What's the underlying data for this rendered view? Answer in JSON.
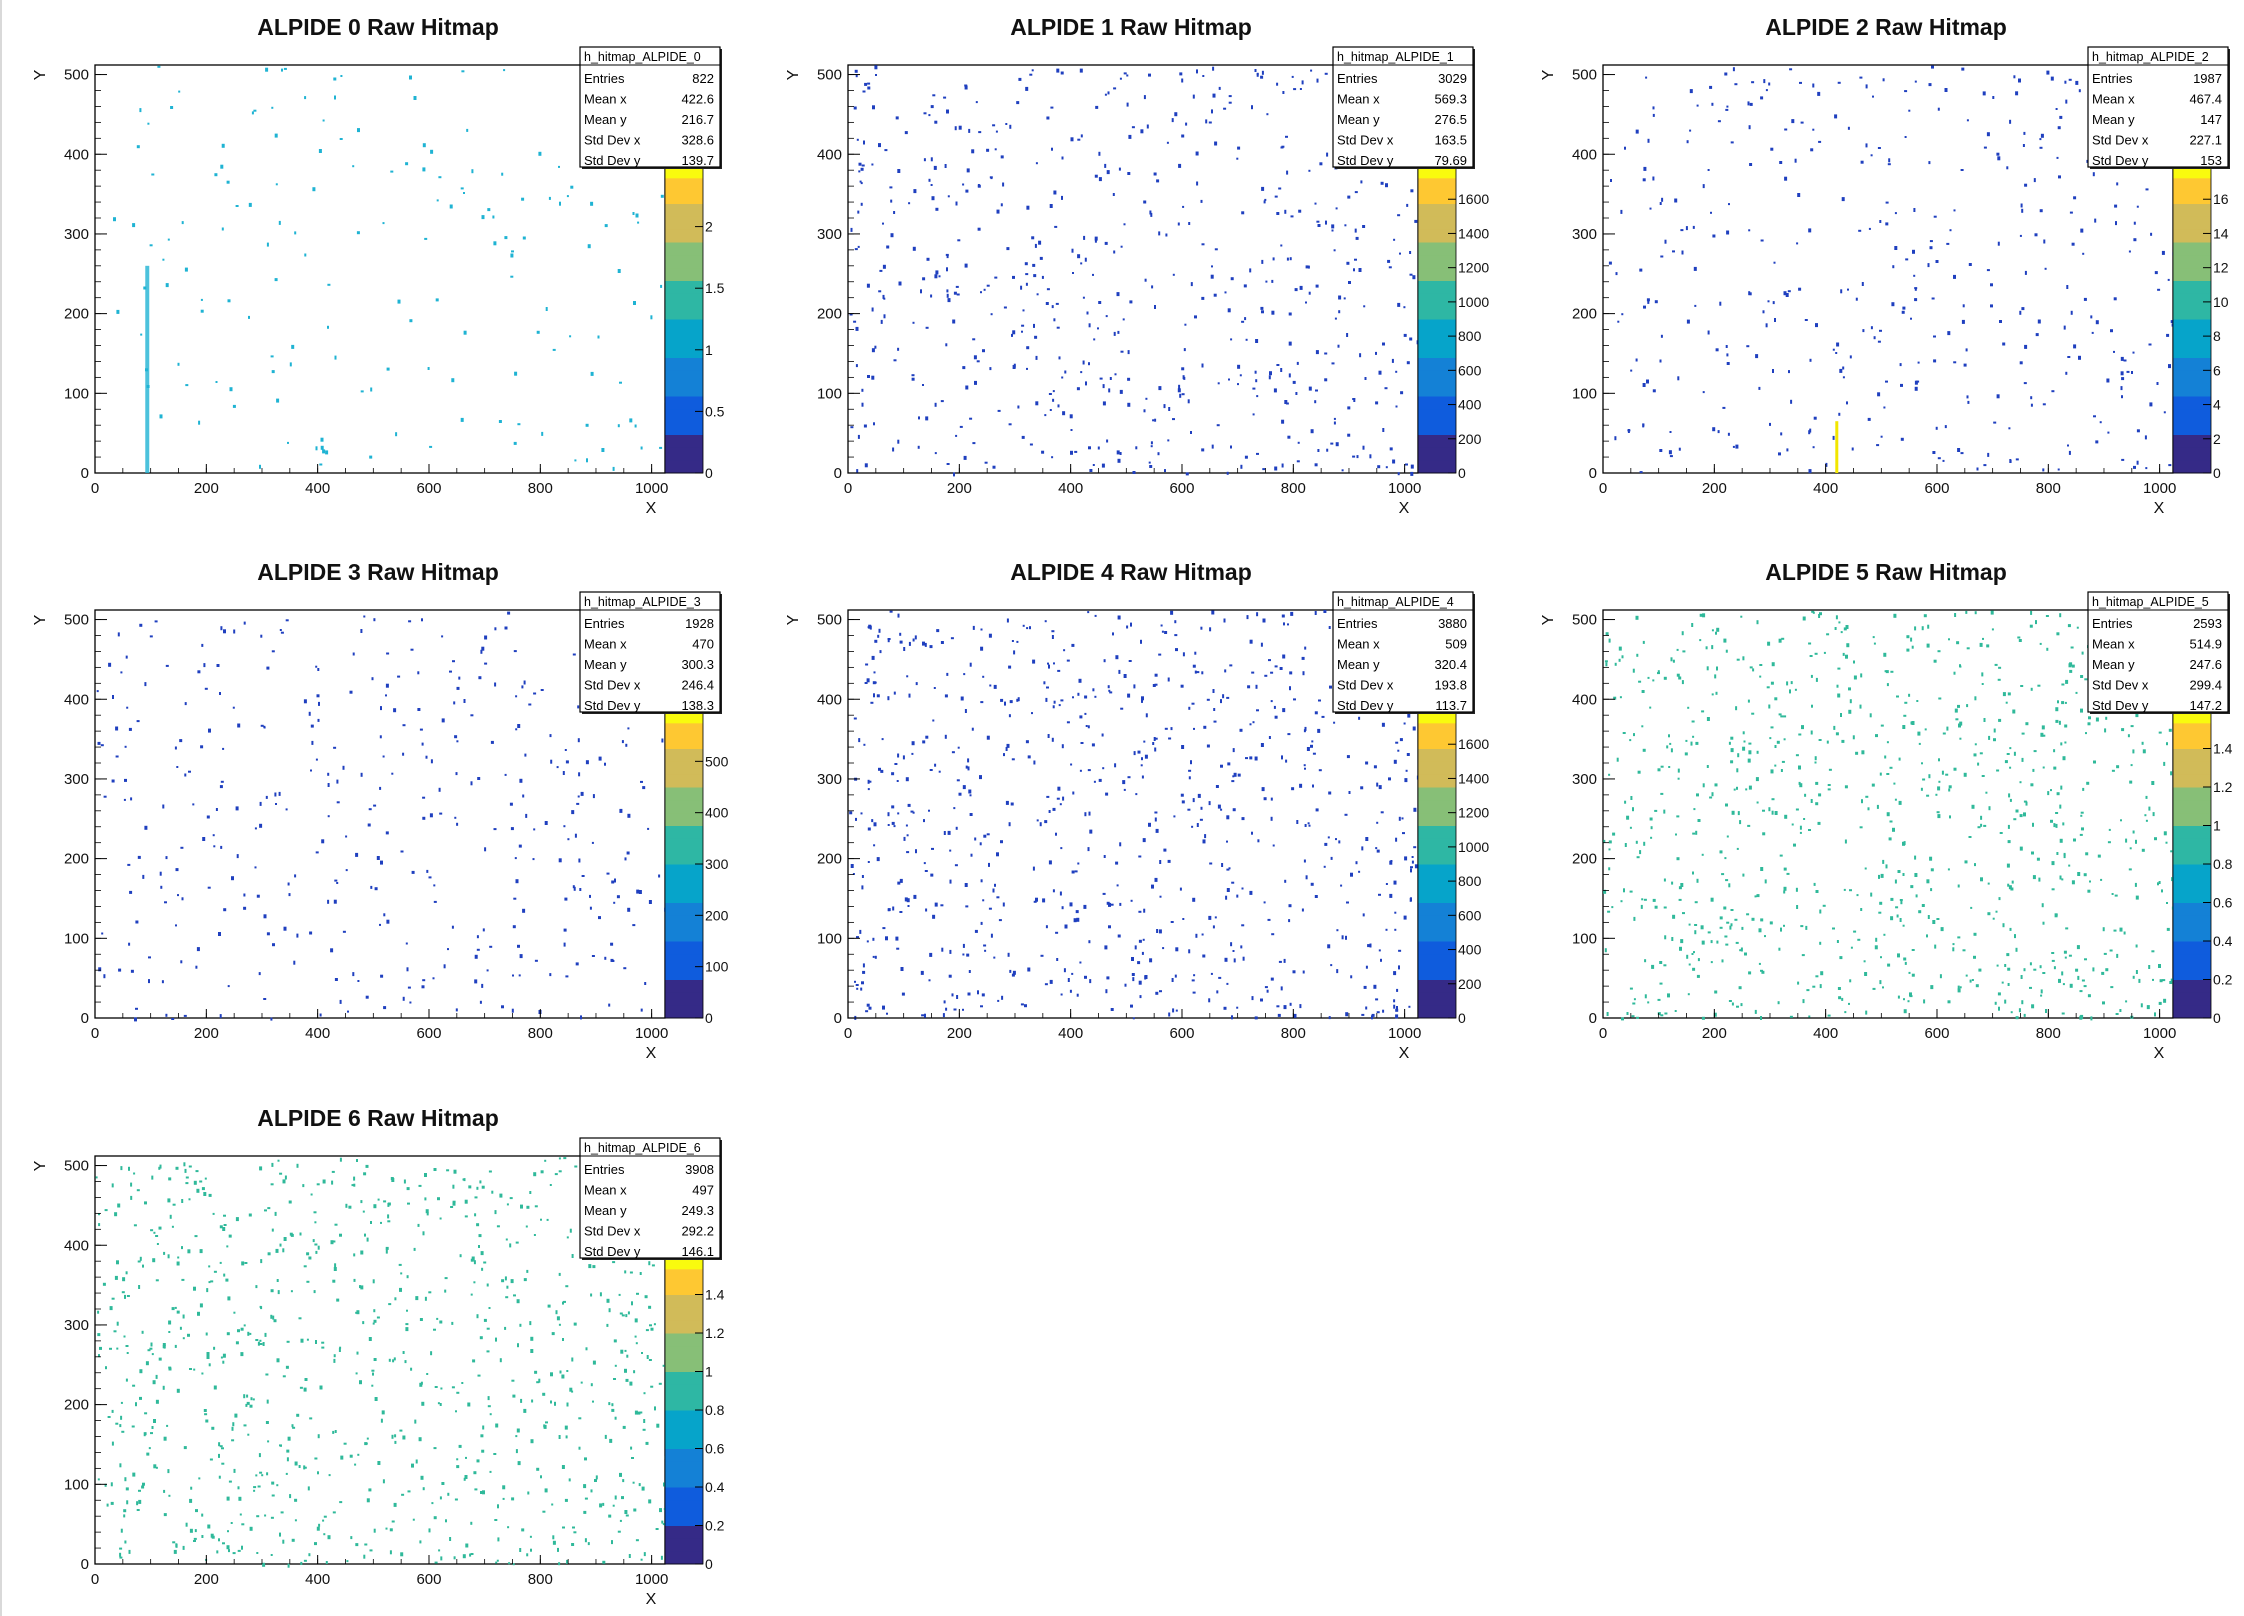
{
  "chart_data": [
    {
      "type": "heatmap",
      "title": "ALPIDE 0 Raw Hitmap",
      "xlabel": "X",
      "ylabel": "Y",
      "xlim": [
        0,
        1024
      ],
      "ylim": [
        0,
        512
      ],
      "x_ticks": [
        "0",
        "200",
        "400",
        "600",
        "800",
        "1000"
      ],
      "y_ticks": [
        "0",
        "100",
        "200",
        "300",
        "400",
        "500"
      ],
      "stats": {
        "name": "h_hitmap_ALPIDE_0",
        "entries": "822",
        "mean_x": "422.6",
        "mean_y": "216.7",
        "std_x": "328.6",
        "std_y": "139.7"
      },
      "z_ticks": [
        "0",
        "0.5",
        "1",
        "1.5",
        "2"
      ],
      "z_max": 2.5,
      "dominant_color": "#1fb3d3",
      "stripe_x": 93,
      "stripe_y": [
        0,
        260
      ]
    },
    {
      "type": "heatmap",
      "title": "ALPIDE 1 Raw Hitmap",
      "xlabel": "X",
      "ylabel": "Y",
      "xlim": [
        0,
        1024
      ],
      "ylim": [
        0,
        512
      ],
      "x_ticks": [
        "0",
        "200",
        "400",
        "600",
        "800",
        "1000"
      ],
      "y_ticks": [
        "0",
        "100",
        "200",
        "300",
        "400",
        "500"
      ],
      "stats": {
        "name": "h_hitmap_ALPIDE_1",
        "entries": "3029",
        "mean_x": "569.3",
        "mean_y": "276.5",
        "std_x": "163.5",
        "std_y": "79.69"
      },
      "z_ticks": [
        "0",
        "200",
        "400",
        "600",
        "800",
        "1000",
        "1200",
        "1400",
        "1600"
      ],
      "z_max": 1800,
      "dominant_color": "#1f3fbf"
    },
    {
      "type": "heatmap",
      "title": "ALPIDE 2 Raw Hitmap",
      "xlabel": "X",
      "ylabel": "Y",
      "xlim": [
        0,
        1024
      ],
      "ylim": [
        0,
        512
      ],
      "x_ticks": [
        "0",
        "200",
        "400",
        "600",
        "800",
        "1000"
      ],
      "y_ticks": [
        "0",
        "100",
        "200",
        "300",
        "400",
        "500"
      ],
      "stats": {
        "name": "h_hitmap_ALPIDE_2",
        "entries": "1987",
        "mean_x": "467.4",
        "mean_y": "147",
        "std_x": "227.1",
        "std_y": "153"
      },
      "z_ticks": [
        "0",
        "2",
        "4",
        "6",
        "8",
        "10",
        "12",
        "14",
        "16"
      ],
      "z_max": 18,
      "dominant_color": "#1f3fbf",
      "stripe_x": 420,
      "stripe_y": [
        0,
        65
      ],
      "stripe_color": "#f2e600"
    },
    {
      "type": "heatmap",
      "title": "ALPIDE 3 Raw Hitmap",
      "xlabel": "X",
      "ylabel": "Y",
      "xlim": [
        0,
        1024
      ],
      "ylim": [
        0,
        512
      ],
      "x_ticks": [
        "0",
        "200",
        "400",
        "600",
        "800",
        "1000"
      ],
      "y_ticks": [
        "0",
        "100",
        "200",
        "300",
        "400",
        "500"
      ],
      "stats": {
        "name": "h_hitmap_ALPIDE_3",
        "entries": "1928",
        "mean_x": "470",
        "mean_y": "300.3",
        "std_x": "246.4",
        "std_y": "138.3"
      },
      "z_ticks": [
        "0",
        "100",
        "200",
        "300",
        "400",
        "500"
      ],
      "z_max": 600,
      "dominant_color": "#1f3fbf"
    },
    {
      "type": "heatmap",
      "title": "ALPIDE 4 Raw Hitmap",
      "xlabel": "X",
      "ylabel": "Y",
      "xlim": [
        0,
        1024
      ],
      "ylim": [
        0,
        512
      ],
      "x_ticks": [
        "0",
        "200",
        "400",
        "600",
        "800",
        "1000"
      ],
      "y_ticks": [
        "0",
        "100",
        "200",
        "300",
        "400",
        "500"
      ],
      "stats": {
        "name": "h_hitmap_ALPIDE_4",
        "entries": "3880",
        "mean_x": "509",
        "mean_y": "320.4",
        "std_x": "193.8",
        "std_y": "113.7"
      },
      "z_ticks": [
        "0",
        "200",
        "400",
        "600",
        "800",
        "1000",
        "1200",
        "1400",
        "1600"
      ],
      "z_max": 1800,
      "dominant_color": "#1f3fbf"
    },
    {
      "type": "heatmap",
      "title": "ALPIDE 5 Raw Hitmap",
      "xlabel": "X",
      "ylabel": "Y",
      "xlim": [
        0,
        1024
      ],
      "ylim": [
        0,
        512
      ],
      "x_ticks": [
        "0",
        "200",
        "400",
        "600",
        "800",
        "1000"
      ],
      "y_ticks": [
        "0",
        "100",
        "200",
        "300",
        "400",
        "500"
      ],
      "stats": {
        "name": "h_hitmap_ALPIDE_5",
        "entries": "2593",
        "mean_x": "514.9",
        "mean_y": "247.6",
        "std_x": "299.4",
        "std_y": "147.2"
      },
      "z_ticks": [
        "0",
        "0.2",
        "0.4",
        "0.6",
        "0.8",
        "1",
        "1.2",
        "1.4"
      ],
      "z_max": 1.6,
      "dominant_color": "#2fb99a"
    },
    {
      "type": "heatmap",
      "title": "ALPIDE 6 Raw Hitmap",
      "xlabel": "X",
      "ylabel": "Y",
      "xlim": [
        0,
        1024
      ],
      "ylim": [
        0,
        512
      ],
      "x_ticks": [
        "0",
        "200",
        "400",
        "600",
        "800",
        "1000"
      ],
      "y_ticks": [
        "0",
        "100",
        "200",
        "300",
        "400",
        "500"
      ],
      "stats": {
        "name": "h_hitmap_ALPIDE_6",
        "entries": "3908",
        "mean_x": "497",
        "mean_y": "249.3",
        "std_x": "292.2",
        "std_y": "146.1"
      },
      "z_ticks": [
        "0",
        "0.2",
        "0.4",
        "0.6",
        "0.8",
        "1",
        "1.2",
        "1.4"
      ],
      "z_max": 1.6,
      "dominant_color": "#2fb99a"
    }
  ],
  "stat_labels": {
    "entries": "Entries",
    "mean_x": "Mean x",
    "mean_y": "Mean y",
    "std_x": "Std Dev x",
    "std_y": "Std Dev y"
  },
  "palette": [
    "#352a87",
    "#0f5cdd",
    "#1481d6",
    "#06a4ca",
    "#2eb7a4",
    "#87bf77",
    "#d1bb59",
    "#fec832",
    "#f9fb0e"
  ]
}
